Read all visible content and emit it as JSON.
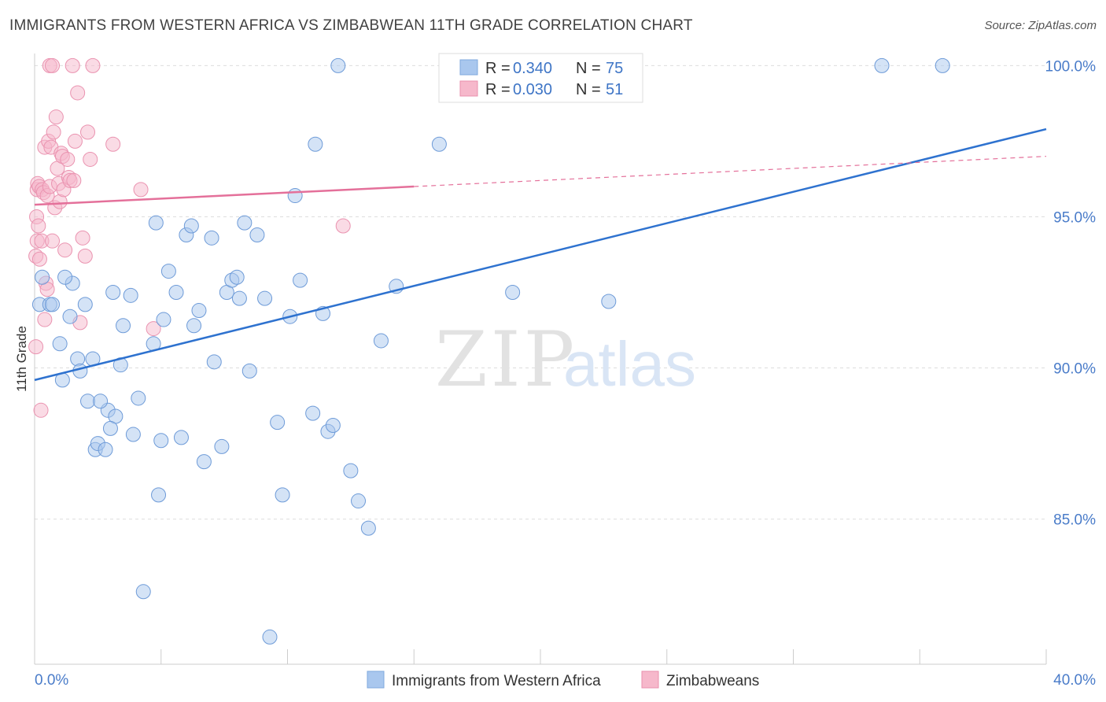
{
  "header": {
    "title": "IMMIGRANTS FROM WESTERN AFRICA VS ZIMBABWEAN 11TH GRADE CORRELATION CHART",
    "source": "Source: ZipAtlas.com"
  },
  "watermark": {
    "zip": "ZIP",
    "atlas": "atlas"
  },
  "colors": {
    "blue": "#4a7cc9",
    "blue_fill": "#a9c7ee",
    "blue_line": "#2e72cf",
    "pink_fill": "#f6b8cb",
    "pink_line": "#e4709a",
    "grid": "#dddddd"
  },
  "chart_data": {
    "type": "scatter",
    "title": "IMMIGRANTS FROM WESTERN AFRICA VS ZIMBABWEAN 11TH GRADE CORRELATION CHART",
    "xlabel": "",
    "ylabel": "11th Grade",
    "xlim": [
      0,
      40
    ],
    "ylim": [
      80.2,
      100.4
    ],
    "x_tick_labels": [
      "0.0%",
      "40.0%"
    ],
    "y_ticks": [
      85,
      90,
      95,
      100
    ],
    "y_tick_labels": [
      "85.0%",
      "90.0%",
      "95.0%",
      "100.0%"
    ],
    "grid": true,
    "legend_position": "bottom",
    "stats": [
      {
        "r_label": "R =",
        "r": "0.340",
        "n_label": "N =",
        "n": "75"
      },
      {
        "r_label": "R =",
        "r": "0.030",
        "n_label": "N =",
        "n": "51"
      }
    ],
    "series": [
      {
        "name": "Immigrants from Western Africa",
        "color": "#a9c7ee",
        "trend": {
          "x": [
            0,
            40
          ],
          "y": [
            89.6,
            97.9
          ],
          "dashed_from": null
        },
        "x": [
          0.2,
          0.3,
          0.6,
          0.7,
          1.0,
          1.1,
          1.4,
          1.5,
          1.7,
          1.8,
          2.0,
          2.1,
          2.3,
          2.4,
          2.5,
          2.8,
          2.9,
          3.1,
          3.2,
          3.4,
          3.5,
          3.8,
          3.9,
          4.1,
          4.3,
          4.7,
          4.8,
          4.9,
          5.1,
          5.3,
          5.6,
          5.8,
          6.0,
          6.2,
          6.3,
          6.5,
          6.7,
          7.0,
          7.1,
          7.4,
          7.6,
          7.8,
          8.0,
          8.1,
          8.3,
          8.5,
          8.8,
          9.1,
          9.3,
          9.6,
          9.8,
          10.1,
          10.3,
          10.5,
          11.0,
          11.1,
          11.4,
          11.6,
          11.8,
          12.0,
          12.5,
          12.8,
          13.2,
          13.7,
          14.3,
          16.0,
          16.3,
          18.9,
          22.7,
          33.5,
          35.9,
          1.2,
          2.6,
          5.0,
          3.0
        ],
        "y": [
          92.1,
          93.0,
          92.1,
          92.1,
          90.8,
          89.6,
          91.7,
          92.8,
          90.3,
          89.9,
          92.1,
          88.9,
          90.3,
          87.3,
          87.5,
          87.3,
          88.6,
          92.5,
          88.4,
          90.1,
          91.4,
          92.4,
          87.8,
          89.0,
          82.6,
          90.8,
          94.8,
          85.8,
          91.6,
          93.2,
          92.5,
          87.7,
          94.4,
          94.7,
          91.4,
          91.9,
          86.9,
          94.3,
          90.2,
          87.4,
          92.5,
          92.9,
          93.0,
          92.3,
          94.8,
          89.9,
          94.4,
          92.3,
          81.1,
          88.2,
          85.8,
          91.7,
          95.7,
          92.9,
          88.5,
          97.4,
          91.8,
          87.9,
          88.1,
          100.0,
          86.6,
          85.6,
          84.7,
          90.9,
          92.7,
          97.4,
          100.0,
          92.5,
          92.2,
          100.0,
          100.0,
          93.0,
          88.9,
          87.6,
          88.0
        ]
      },
      {
        "name": "Zimbabweans",
        "color": "#f6b8cb",
        "trend": {
          "x": [
            0,
            40
          ],
          "y": [
            95.4,
            97.0
          ],
          "dashed_from": 15
        },
        "x": [
          0.05,
          0.05,
          0.08,
          0.1,
          0.1,
          0.12,
          0.15,
          0.18,
          0.2,
          0.25,
          0.28,
          0.3,
          0.35,
          0.4,
          0.4,
          0.45,
          0.5,
          0.5,
          0.55,
          0.6,
          0.6,
          0.65,
          0.7,
          0.7,
          0.75,
          0.8,
          0.85,
          0.9,
          0.95,
          1.0,
          1.05,
          1.1,
          1.15,
          1.2,
          1.3,
          1.35,
          1.4,
          1.5,
          1.55,
          1.6,
          1.7,
          1.8,
          1.9,
          2.0,
          2.1,
          2.2,
          2.3,
          3.1,
          4.2,
          4.7,
          12.2
        ],
        "y": [
          90.7,
          93.7,
          95.0,
          94.2,
          95.9,
          96.1,
          94.7,
          96.0,
          93.6,
          88.6,
          94.2,
          95.9,
          95.8,
          97.3,
          91.6,
          92.8,
          95.7,
          92.6,
          97.5,
          100.0,
          96.0,
          97.3,
          94.2,
          100.0,
          97.8,
          95.3,
          98.3,
          96.6,
          96.1,
          95.5,
          97.1,
          97.0,
          95.9,
          93.9,
          96.9,
          96.3,
          96.2,
          100.0,
          96.2,
          97.5,
          99.1,
          91.5,
          94.3,
          93.7,
          97.8,
          96.9,
          100.0,
          97.4,
          95.9,
          91.3,
          94.7
        ]
      }
    ]
  },
  "legend": {
    "items": [
      "Immigrants from Western Africa",
      "Zimbabweans"
    ]
  }
}
